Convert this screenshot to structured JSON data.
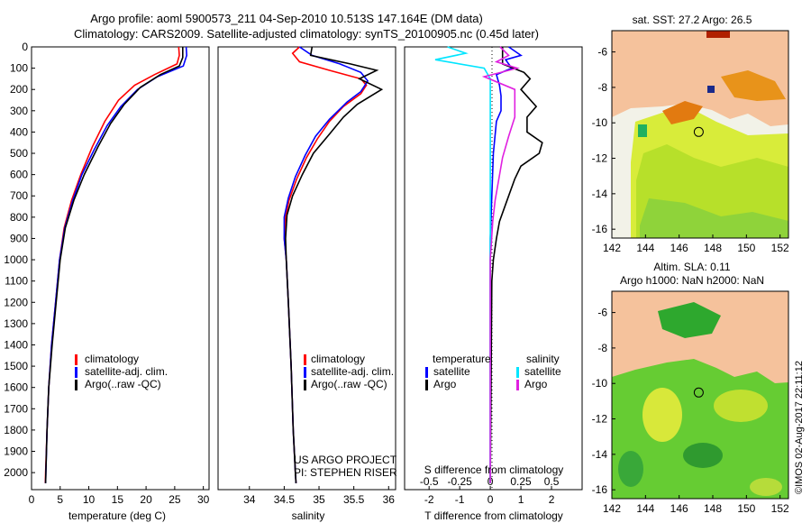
{
  "figure": {
    "title_line1": "Argo profile: aoml 5900573_211 04-Sep-2010 10.513S 147.164E (DM data)",
    "title_line2": "Climatology: CARS2009. Satellite-adjusted climatology: synTS_20100905.nc (0.45d later)",
    "side_stamp": "©IMOS 02-Aug-2017 22:11:12"
  },
  "colors": {
    "climatology": "#ff0000",
    "satellite": "#0000ff",
    "argo": "#000000",
    "sal_satellite": "#00e5ff",
    "sal_argo": "#e020e0",
    "land": "#f5c29c",
    "sea_green": "#2eb82e"
  },
  "chart_data": [
    {
      "type": "line",
      "title": "",
      "xlabel": "temperature (deg C)",
      "ylabel": "",
      "xlim": [
        0,
        31
      ],
      "ylim": [
        2080,
        0
      ],
      "x_ticks": [
        0,
        5,
        10,
        15,
        20,
        25,
        30
      ],
      "y_ticks": [
        0,
        100,
        200,
        300,
        400,
        500,
        600,
        700,
        800,
        900,
        1000,
        1100,
        1200,
        1300,
        1400,
        1500,
        1600,
        1700,
        1800,
        1900,
        2000
      ],
      "legend": [
        "climatology",
        "satellite-adj. clim.",
        "Argo(..raw -QC)"
      ],
      "series": [
        {
          "name": "climatology",
          "points": [
            [
              25.7,
              0
            ],
            [
              25.8,
              40
            ],
            [
              25.4,
              80
            ],
            [
              21.5,
              130
            ],
            [
              18,
              180
            ],
            [
              15.2,
              250
            ],
            [
              12.8,
              350
            ],
            [
              10.6,
              470
            ],
            [
              8.6,
              600
            ],
            [
              7.0,
              720
            ],
            [
              5.7,
              850
            ],
            [
              4.9,
              1000
            ],
            [
              4.2,
              1200
            ],
            [
              3.5,
              1400
            ],
            [
              3.0,
              1600
            ],
            [
              2.7,
              1800
            ],
            [
              2.45,
              2000
            ],
            [
              2.4,
              2050
            ]
          ]
        },
        {
          "name": "satellite-adj. clim.",
          "points": [
            [
              27.0,
              0
            ],
            [
              27.1,
              40
            ],
            [
              26.5,
              90
            ],
            [
              22,
              140
            ],
            [
              18.5,
              200
            ],
            [
              15.6,
              280
            ],
            [
              13.2,
              370
            ],
            [
              11.0,
              480
            ],
            [
              8.8,
              600
            ],
            [
              7.2,
              720
            ],
            [
              5.8,
              850
            ],
            [
              4.9,
              1000
            ],
            [
              4.2,
              1200
            ],
            [
              3.5,
              1400
            ],
            [
              3.0,
              1600
            ],
            [
              2.7,
              1800
            ],
            [
              2.5,
              2000
            ],
            [
              2.45,
              2050
            ]
          ]
        },
        {
          "name": "Argo(..raw -QC)",
          "points": [
            [
              26.4,
              0
            ],
            [
              26.4,
              50
            ],
            [
              25.8,
              90
            ],
            [
              22.5,
              130
            ],
            [
              19,
              190
            ],
            [
              16.2,
              270
            ],
            [
              13.8,
              360
            ],
            [
              11.6,
              470
            ],
            [
              9.2,
              600
            ],
            [
              7.4,
              720
            ],
            [
              5.9,
              850
            ],
            [
              5.0,
              1000
            ],
            [
              4.3,
              1200
            ],
            [
              3.6,
              1400
            ],
            [
              3.0,
              1600
            ],
            [
              2.7,
              1800
            ],
            [
              2.5,
              2000
            ],
            [
              2.45,
              2050
            ]
          ]
        }
      ]
    },
    {
      "type": "line",
      "title": "",
      "xlabel": "salinity",
      "ylabel": "",
      "xlim": [
        33.55,
        36.1
      ],
      "ylim": [
        2080,
        0
      ],
      "x_ticks": [
        34,
        34.5,
        35,
        35.5,
        36
      ],
      "x_tick_labels": [
        "34",
        "34.5",
        "35",
        "35.5",
        "36"
      ],
      "legend": [
        "climatology",
        "satellite-adj. clim.",
        "Argo(..raw -QC)"
      ],
      "annotation_line1": "US ARGO PROJECT",
      "annotation_line2": "PI: STEPHEN RISER",
      "series": [
        {
          "name": "climatology",
          "points": [
            [
              34.72,
              0
            ],
            [
              34.62,
              30
            ],
            [
              34.72,
              70
            ],
            [
              35.15,
              110
            ],
            [
              35.6,
              150
            ],
            [
              35.68,
              180
            ],
            [
              35.6,
              220
            ],
            [
              35.35,
              280
            ],
            [
              35.15,
              350
            ],
            [
              34.98,
              430
            ],
            [
              34.82,
              520
            ],
            [
              34.68,
              620
            ],
            [
              34.57,
              720
            ],
            [
              34.52,
              800
            ],
            [
              34.5,
              900
            ],
            [
              34.53,
              1000
            ],
            [
              34.56,
              1200
            ],
            [
              34.6,
              1500
            ],
            [
              34.63,
              1800
            ],
            [
              34.66,
              2000
            ],
            [
              34.67,
              2050
            ]
          ]
        },
        {
          "name": "satellite-adj. clim.",
          "points": [
            [
              34.72,
              0
            ],
            [
              34.9,
              40
            ],
            [
              35.3,
              80
            ],
            [
              35.6,
              120
            ],
            [
              35.7,
              160
            ],
            [
              35.6,
              210
            ],
            [
              35.4,
              260
            ],
            [
              35.15,
              340
            ],
            [
              34.95,
              420
            ],
            [
              34.8,
              510
            ],
            [
              34.66,
              610
            ],
            [
              34.56,
              710
            ],
            [
              34.5,
              800
            ],
            [
              34.5,
              900
            ],
            [
              34.53,
              1000
            ],
            [
              34.56,
              1200
            ],
            [
              34.6,
              1500
            ],
            [
              34.63,
              1800
            ],
            [
              34.66,
              2000
            ],
            [
              34.67,
              2050
            ]
          ]
        },
        {
          "name": "Argo(..raw -QC)",
          "points": [
            [
              34.9,
              0
            ],
            [
              34.88,
              40
            ],
            [
              35.45,
              80
            ],
            [
              35.83,
              110
            ],
            [
              35.58,
              150
            ],
            [
              35.9,
              200
            ],
            [
              35.55,
              270
            ],
            [
              35.35,
              330
            ],
            [
              35.15,
              410
            ],
            [
              34.92,
              500
            ],
            [
              34.76,
              600
            ],
            [
              34.62,
              700
            ],
            [
              34.54,
              790
            ],
            [
              34.52,
              900
            ],
            [
              34.53,
              1000
            ],
            [
              34.56,
              1200
            ],
            [
              34.6,
              1500
            ],
            [
              34.63,
              1800
            ],
            [
              34.66,
              2000
            ],
            [
              34.67,
              2050
            ]
          ]
        }
      ]
    },
    {
      "type": "line",
      "title": "",
      "xlabel": "T difference from climatology",
      "xlabel_top": "S difference from climatology",
      "ylabel": "",
      "xlim": [
        -2.8,
        3.0
      ],
      "ylim": [
        2080,
        0
      ],
      "x_ticks": [
        -2,
        -1,
        0,
        1,
        2
      ],
      "x2_ticks": [
        -0.5,
        -0.25,
        0,
        0.25,
        0.5
      ],
      "x2_tick_labels": [
        "-0.5",
        "-0.25",
        "0",
        "0.25",
        "0.5"
      ],
      "legend_headers": [
        "temperature",
        "salinity"
      ],
      "legend": [
        "satellite",
        "Argo",
        "satellite",
        "Argo"
      ],
      "series": [
        {
          "name": "temperature satellite",
          "points": [
            [
              0.6,
              0
            ],
            [
              1.0,
              40
            ],
            [
              0.5,
              60
            ],
            [
              0.7,
              100
            ],
            [
              0.2,
              130
            ],
            [
              0.3,
              180
            ],
            [
              0.35,
              230
            ],
            [
              0.35,
              300
            ],
            [
              0.2,
              350
            ],
            [
              0.1,
              500
            ],
            [
              0.05,
              700
            ],
            [
              0.0,
              900
            ],
            [
              0.0,
              1100
            ],
            [
              0.0,
              2050
            ]
          ]
        },
        {
          "name": "temperature Argo",
          "points": [
            [
              0.4,
              0
            ],
            [
              0.4,
              80
            ],
            [
              1.1,
              120
            ],
            [
              1.3,
              150
            ],
            [
              1.0,
              200
            ],
            [
              1.5,
              280
            ],
            [
              1.2,
              330
            ],
            [
              1.2,
              400
            ],
            [
              1.7,
              450
            ],
            [
              1.6,
              500
            ],
            [
              1.0,
              560
            ],
            [
              0.8,
              620
            ],
            [
              0.6,
              700
            ],
            [
              0.3,
              820
            ],
            [
              0.2,
              900
            ],
            [
              0.1,
              1000
            ],
            [
              0.05,
              1100
            ],
            [
              0.0,
              2050
            ]
          ]
        },
        {
          "name": "salinity satellite",
          "points": [
            [
              -0.35,
              0
            ],
            [
              -0.2,
              30
            ],
            [
              -0.45,
              60
            ],
            [
              -0.05,
              100
            ],
            [
              0.0,
              150
            ],
            [
              0.0,
              300
            ],
            [
              0.0,
              600
            ],
            [
              0.0,
              1000
            ],
            [
              0.0,
              2050
            ]
          ]
        },
        {
          "name": "salinity Argo",
          "points": [
            [
              0.08,
              0
            ],
            [
              0.15,
              40
            ],
            [
              0.05,
              70
            ],
            [
              0.22,
              100
            ],
            [
              -0.05,
              140
            ],
            [
              0.2,
              200
            ],
            [
              0.2,
              260
            ],
            [
              0.2,
              330
            ],
            [
              0.15,
              420
            ],
            [
              0.1,
              520
            ],
            [
              0.07,
              620
            ],
            [
              0.04,
              720
            ],
            [
              0.02,
              820
            ],
            [
              0.0,
              1000
            ],
            [
              0.0,
              2050
            ]
          ]
        }
      ]
    },
    {
      "type": "heatmap",
      "title": "sat. SST: 27.2 Argo: 26.5",
      "xlim": [
        142,
        152.5
      ],
      "ylim": [
        -16.5,
        -4.8
      ],
      "x_ticks": [
        142,
        144,
        146,
        148,
        150,
        152
      ],
      "y_ticks": [
        -6,
        -8,
        -10,
        -12,
        -14,
        -16
      ],
      "marker": {
        "lon": 147.164,
        "lat": -10.513
      }
    },
    {
      "type": "heatmap",
      "title": "Altim. SLA: 0.11",
      "subtitle": "Argo h1000: NaN h2000: NaN",
      "xlim": [
        142,
        152.5
      ],
      "ylim": [
        -16.5,
        -4.8
      ],
      "x_ticks": [
        142,
        144,
        146,
        148,
        150,
        152
      ],
      "y_ticks": [
        -6,
        -8,
        -10,
        -12,
        -14,
        -16
      ],
      "marker": {
        "lon": 147.164,
        "lat": -10.513
      }
    }
  ]
}
